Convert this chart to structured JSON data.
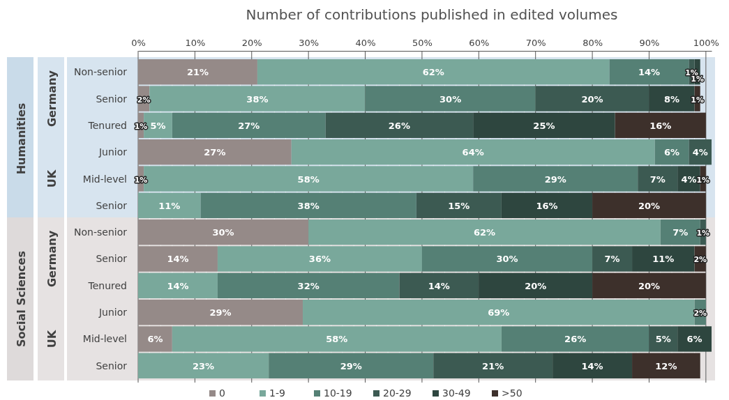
{
  "chart_data": {
    "type": "bar",
    "orientation": "horizontal",
    "stacked": true,
    "title": "Number of contributions published in edited volumes",
    "categories": [
      "Non-senior",
      "Senior",
      "Tenured",
      "Junior",
      "Mid-level",
      "Senior",
      "Non-senior",
      "Senior",
      "Tenured",
      "Junior",
      "Mid-level",
      "Senior"
    ],
    "annotations": [
      "Humanities",
      "Social Sciences",
      "Germany",
      "UK",
      "Germany",
      "UK"
    ],
    "series": [
      {
        "name": "0",
        "color": "#958a88",
        "values": [
          21,
          2,
          1,
          27,
          1,
          null,
          30,
          14,
          null,
          29,
          6,
          null
        ],
        "value_labels": [
          "21%",
          "2%",
          "1%",
          "27%",
          "1%",
          null,
          "30%",
          "14%",
          null,
          "29%",
          "6%",
          null
        ]
      },
      {
        "name": "1-9",
        "color": "#79a89b",
        "values": [
          62,
          38,
          5,
          64,
          58,
          11,
          62,
          36,
          14,
          69,
          58,
          23
        ],
        "value_labels": [
          "62%",
          "38%",
          "5%",
          "64%",
          "58%",
          "11%",
          "62%",
          "36%",
          "14%",
          "69%",
          "58%",
          "23%"
        ]
      },
      {
        "name": "10-19",
        "color": "#558075",
        "values": [
          14,
          30,
          27,
          6,
          29,
          38,
          7,
          30,
          32,
          2,
          26,
          29
        ],
        "value_labels": [
          "14%",
          "30%",
          "27%",
          "6%",
          "29%",
          "38%",
          "7%",
          "30%",
          "32%",
          "2%",
          "26%",
          "29%"
        ]
      },
      {
        "name": "20-29",
        "color": "#3c5a52",
        "values": [
          1,
          20,
          26,
          4,
          7,
          15,
          1,
          7,
          14,
          null,
          5,
          21
        ],
        "value_labels": [
          "1%",
          "20%",
          "26%",
          "4%",
          "7%",
          "15%",
          "1%",
          "7%",
          "14%",
          null,
          "5%",
          "21%"
        ]
      },
      {
        "name": "30-49",
        "color": "#2e463f",
        "values": [
          1,
          8,
          25,
          null,
          4,
          16,
          null,
          11,
          20,
          null,
          6,
          14
        ],
        "value_labels": [
          "1%",
          "8%",
          "25%",
          null,
          "4%",
          "16%",
          null,
          "11%",
          "20%",
          null,
          "6%",
          "14%"
        ]
      },
      {
        "name": ">50",
        "color": "#3d302b",
        "values": [
          null,
          1,
          16,
          null,
          1,
          20,
          null,
          2,
          20,
          null,
          null,
          12
        ],
        "value_labels": [
          null,
          "1%",
          "16%",
          null,
          "1%",
          "20%",
          null,
          "2%",
          "20%",
          null,
          null,
          "12%"
        ]
      }
    ],
    "xlim": [
      0,
      101
    ],
    "xticks": [
      {
        "value": 0,
        "label": "0%"
      },
      {
        "value": 10,
        "label": "10%"
      },
      {
        "value": 20,
        "label": "20%"
      },
      {
        "value": 30,
        "label": "30%"
      },
      {
        "value": 40,
        "label": "40%"
      },
      {
        "value": 50,
        "label": "50%"
      },
      {
        "value": 60,
        "label": "60%"
      },
      {
        "value": 70,
        "label": "70%"
      },
      {
        "value": 80,
        "label": "80%"
      },
      {
        "value": 90,
        "label": "90%"
      },
      {
        "value": 100,
        "label": "100%"
      }
    ],
    "grid": "x",
    "legend": "bottom"
  }
}
